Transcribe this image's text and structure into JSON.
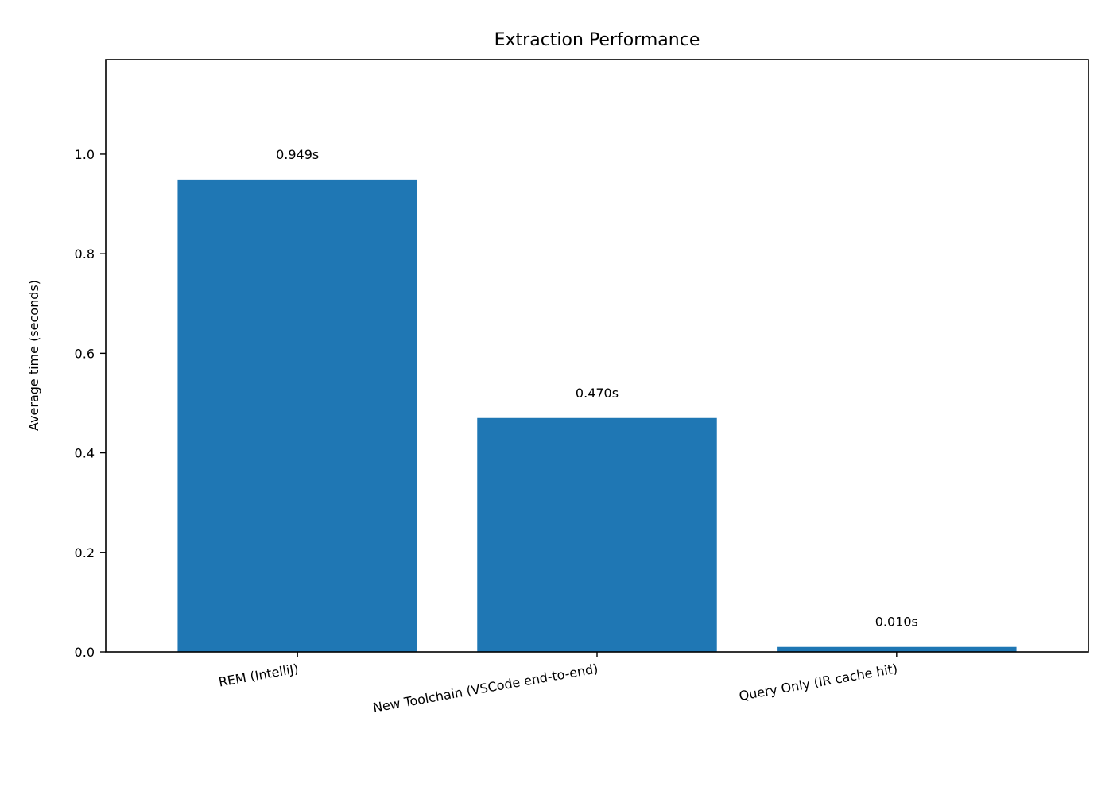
{
  "chart_data": {
    "type": "bar",
    "title": "Extraction Performance",
    "xlabel": "",
    "ylabel": "Average time (seconds)",
    "categories": [
      "REM (IntelliJ)",
      "New Toolchain (VSCode end-to-end)",
      "Query Only (IR cache hit)"
    ],
    "values": [
      0.949,
      0.47,
      0.01
    ],
    "data_labels": [
      "0.949s",
      "0.470s",
      "0.010s"
    ],
    "ylim": [
      0,
      1.19
    ],
    "yticks": [
      0.0,
      0.2,
      0.4,
      0.6,
      0.8,
      1.0
    ],
    "ytick_labels": [
      "0.0",
      "0.2",
      "0.4",
      "0.6",
      "0.8",
      "1.0"
    ],
    "grid": false,
    "colors": {
      "bar": "#1f77b4",
      "axis": "#000000",
      "background": "#ffffff"
    }
  }
}
